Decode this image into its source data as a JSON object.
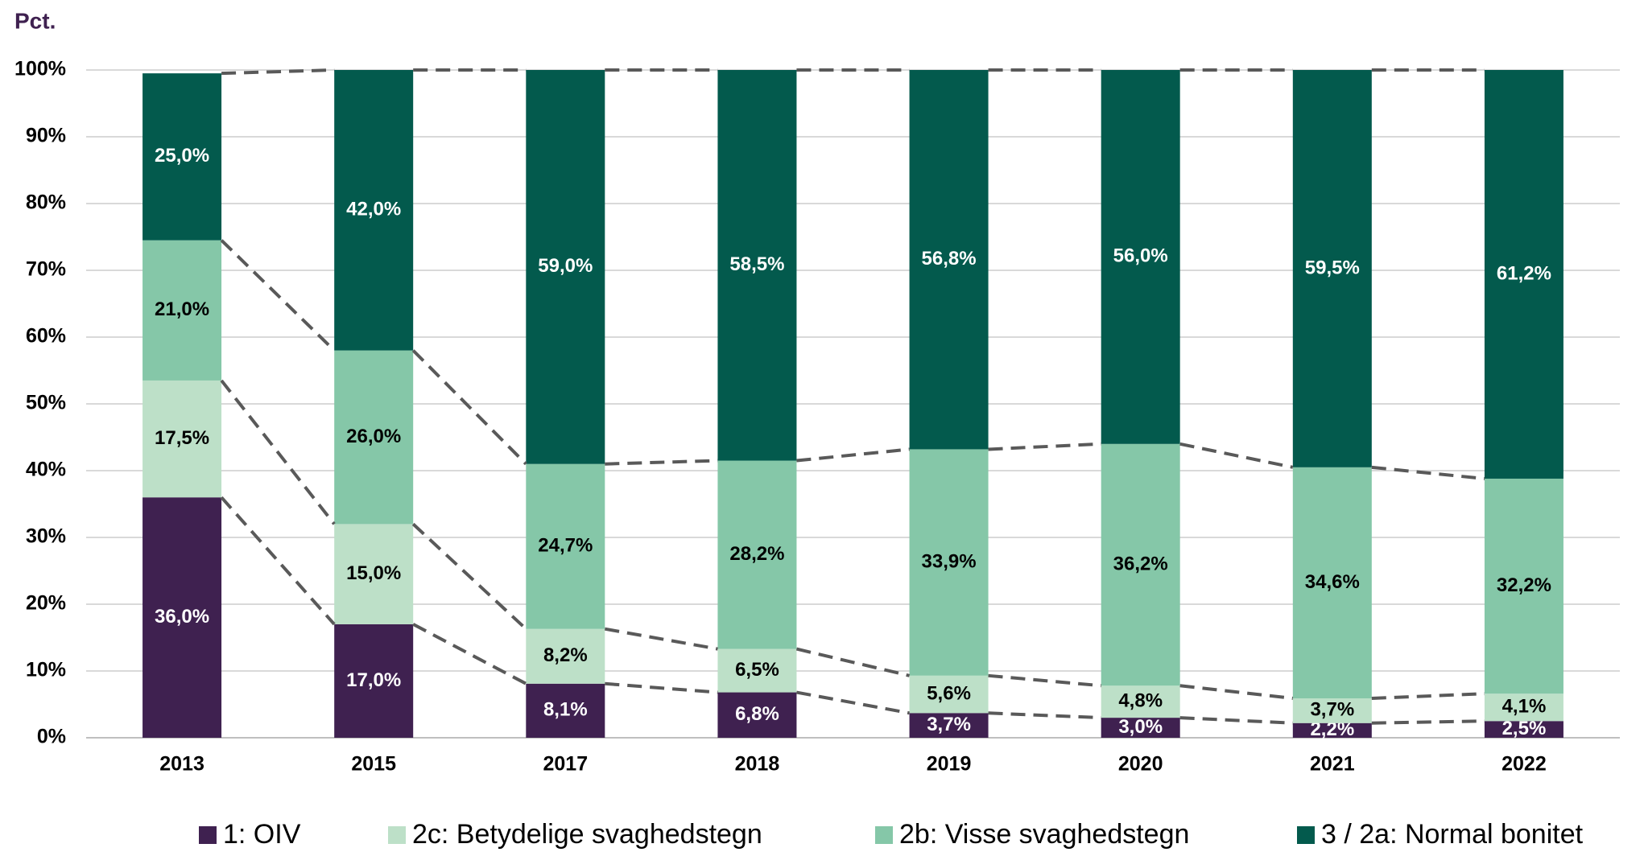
{
  "chart_data": {
    "type": "stacked_bar",
    "y_label": "Pct.",
    "categories": [
      "2013",
      "2015",
      "2017",
      "2018",
      "2019",
      "2020",
      "2021",
      "2022"
    ],
    "ylim": [
      0,
      100
    ],
    "yticks": [
      {
        "value": 0,
        "label": "0%"
      },
      {
        "value": 10,
        "label": "10%"
      },
      {
        "value": 20,
        "label": "20%"
      },
      {
        "value": 30,
        "label": "30%"
      },
      {
        "value": 40,
        "label": "40%"
      },
      {
        "value": 50,
        "label": "50%"
      },
      {
        "value": 60,
        "label": "60%"
      },
      {
        "value": 70,
        "label": "70%"
      },
      {
        "value": 80,
        "label": "80%"
      },
      {
        "value": 90,
        "label": "90%"
      },
      {
        "value": 100,
        "label": "100%"
      }
    ],
    "grid": true,
    "legend": "bottom",
    "connector_lines": true,
    "series": [
      {
        "name": "1: OIV",
        "color": "#3f2150",
        "label_color": "#ffffff",
        "values": [
          36.0,
          17.0,
          8.1,
          6.8,
          3.7,
          3.0,
          2.2,
          2.5
        ],
        "value_labels": [
          "36,0%",
          "17,0%",
          "8,1%",
          "6,8%",
          "3,7%",
          "3,0%",
          "2,2%",
          "2,5%"
        ]
      },
      {
        "name": "2c: Betydelige svaghedstegn",
        "color": "#bde0c8",
        "label_color": "#000000",
        "values": [
          17.5,
          15.0,
          8.2,
          6.5,
          5.6,
          4.8,
          3.7,
          4.1
        ],
        "value_labels": [
          "17,5%",
          "15,0%",
          "8,2%",
          "6,5%",
          "5,6%",
          "4,8%",
          "3,7%",
          "4,1%"
        ]
      },
      {
        "name": "2b: Visse svaghedstegn",
        "color": "#85c7a8",
        "label_color": "#000000",
        "values": [
          21.0,
          26.0,
          24.7,
          28.2,
          33.9,
          36.2,
          34.6,
          32.2
        ],
        "value_labels": [
          "21,0%",
          "26,0%",
          "24,7%",
          "28,2%",
          "33,9%",
          "36,2%",
          "34,6%",
          "32,2%"
        ]
      },
      {
        "name": "3 / 2a: Normal bonitet",
        "color": "#035a4d",
        "label_color": "#ffffff",
        "values": [
          25.0,
          42.0,
          59.0,
          58.5,
          56.8,
          56.0,
          59.5,
          61.2
        ],
        "value_labels": [
          "25,0%",
          "42,0%",
          "59,0%",
          "58,5%",
          "56,8%",
          "56,0%",
          "59,5%",
          "61,2%"
        ]
      }
    ]
  }
}
